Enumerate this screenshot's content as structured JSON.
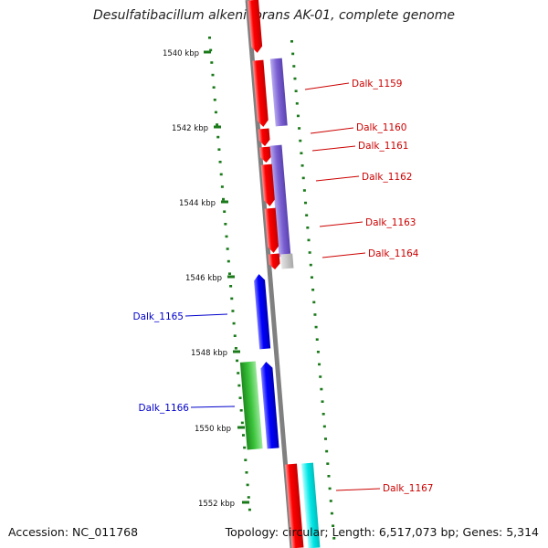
{
  "title": "Desulfatibacillum alkenivorans AK-01, complete genome",
  "accession": "Accession: NC_011768",
  "summary": "Topology: circular; Length: 6,517,073 bp; Genes: 5,314",
  "ticks": [
    "1540 kbp",
    "1542 kbp",
    "1544 kbp",
    "1546 kbp",
    "1548 kbp",
    "1550 kbp",
    "1552 kbp"
  ],
  "gene_labels": [
    {
      "text": "Dalk_1159",
      "color": "#cc0000"
    },
    {
      "text": "Dalk_1160",
      "color": "#cc0000"
    },
    {
      "text": "Dalk_1161",
      "color": "#cc0000"
    },
    {
      "text": "Dalk_1162",
      "color": "#cc0000"
    },
    {
      "text": "Dalk_1163",
      "color": "#cc0000"
    },
    {
      "text": "Dalk_1164",
      "color": "#cc0000"
    },
    {
      "text": "Dalk_1165",
      "color": "#0000cc"
    },
    {
      "text": "Dalk_1166",
      "color": "#0000cc"
    },
    {
      "text": "Dalk_1167",
      "color": "#cc0000"
    }
  ],
  "colors": {
    "forward_cds": "#ff0000",
    "reverse_cds": "#0000ff",
    "forward_feature": "#7a5fd1",
    "reverse_feature": "#22aa22",
    "rna": "#00e5e5",
    "gap": "#c0c0c0",
    "backbone": "#808080",
    "gc_skew": "#1a7a1a"
  }
}
